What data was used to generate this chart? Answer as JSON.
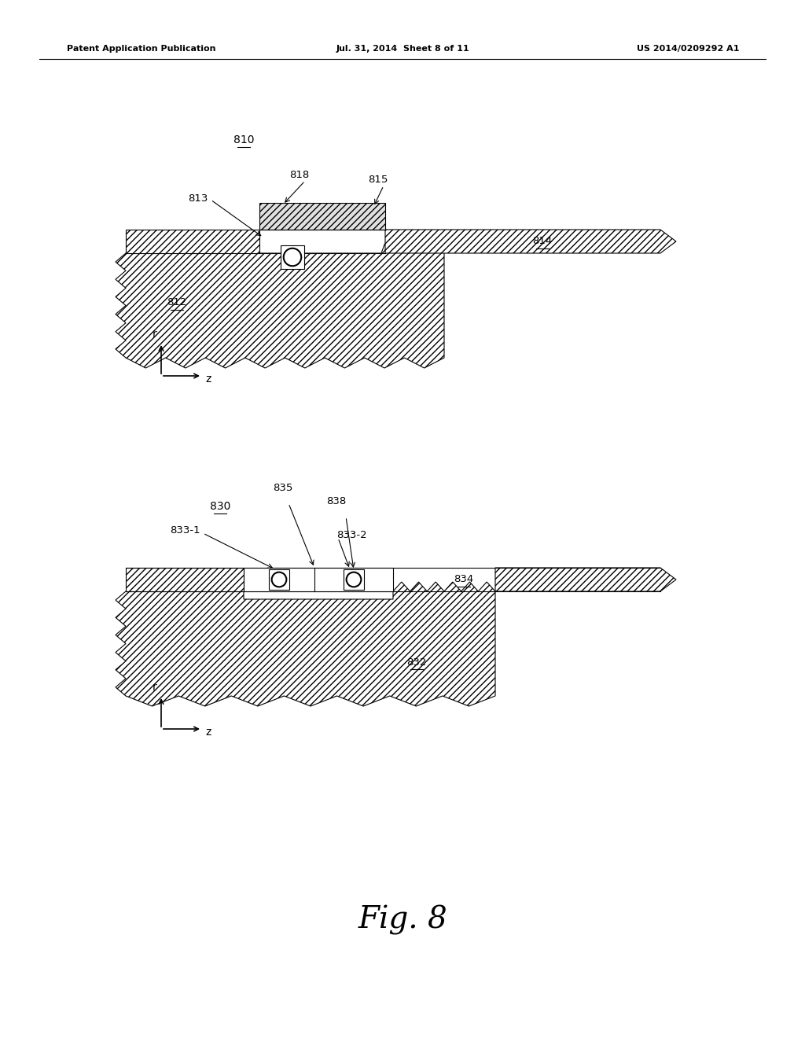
{
  "bg_color": "#ffffff",
  "fig_width": 10.24,
  "fig_height": 13.2,
  "header_left": "Patent Application Publication",
  "header_mid": "Jul. 31, 2014  Sheet 8 of 11",
  "header_right": "US 2014/0209292 A1",
  "fig_label": "Fig. 8"
}
